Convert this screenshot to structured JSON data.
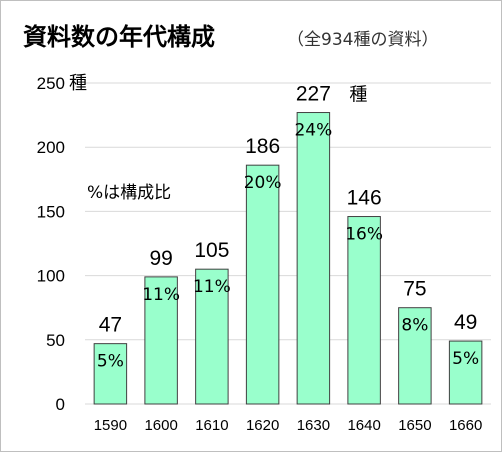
{
  "chart_data": {
    "type": "bar",
    "title": "資料数の年代構成",
    "subtitle": "（全934種の資料）",
    "categories": [
      "1590",
      "1600",
      "1610",
      "1620",
      "1630",
      "1640",
      "1650",
      "1660"
    ],
    "values": [
      47,
      99,
      105,
      186,
      227,
      146,
      75,
      49
    ],
    "percent_labels": [
      "5%",
      "11%",
      "11%",
      "20%",
      "24%",
      "16%",
      "8%",
      "5%"
    ],
    "value_unit": "種",
    "ylim": [
      0,
      250
    ],
    "yticks": [
      0,
      50,
      100,
      150,
      200,
      250
    ],
    "annotation": "%は構成比",
    "grid": true,
    "colors": {
      "bar": "#99ffcc",
      "bar_border": "#404040",
      "grid": "#d9d9d9"
    }
  }
}
